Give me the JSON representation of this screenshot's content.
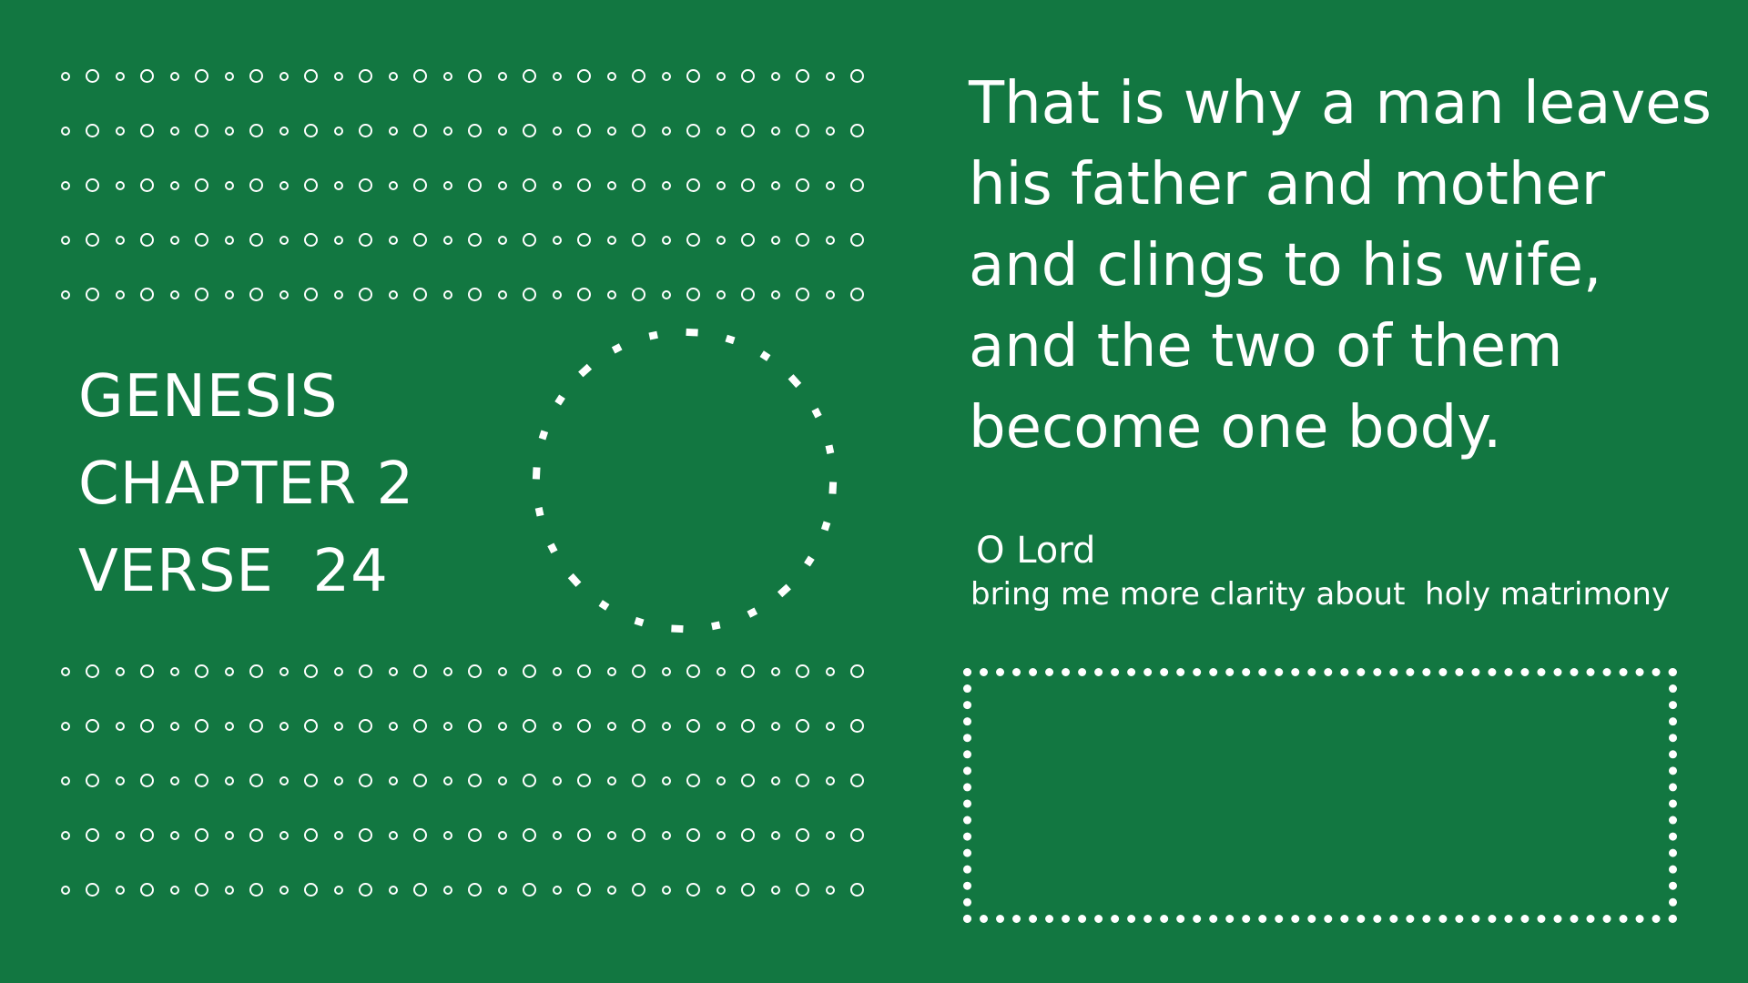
{
  "colors": {
    "background": "#127741",
    "foreground": "#ffffff"
  },
  "reference": {
    "book": "GENESIS",
    "chapter": "CHAPTER 2",
    "verse": "VERSE  24"
  },
  "verse_text": "That is why a man leaves his father and mother and clings to his wife, and the two of them become one body.",
  "prayer": {
    "title": "O Lord",
    "line": "bring me more clarity about  holy matrimony"
  },
  "decorations": {
    "dot_grid_icon": "ring-pattern",
    "circle_icon": "dashed-circle",
    "response_box_icon": "dotted-rectangle"
  }
}
